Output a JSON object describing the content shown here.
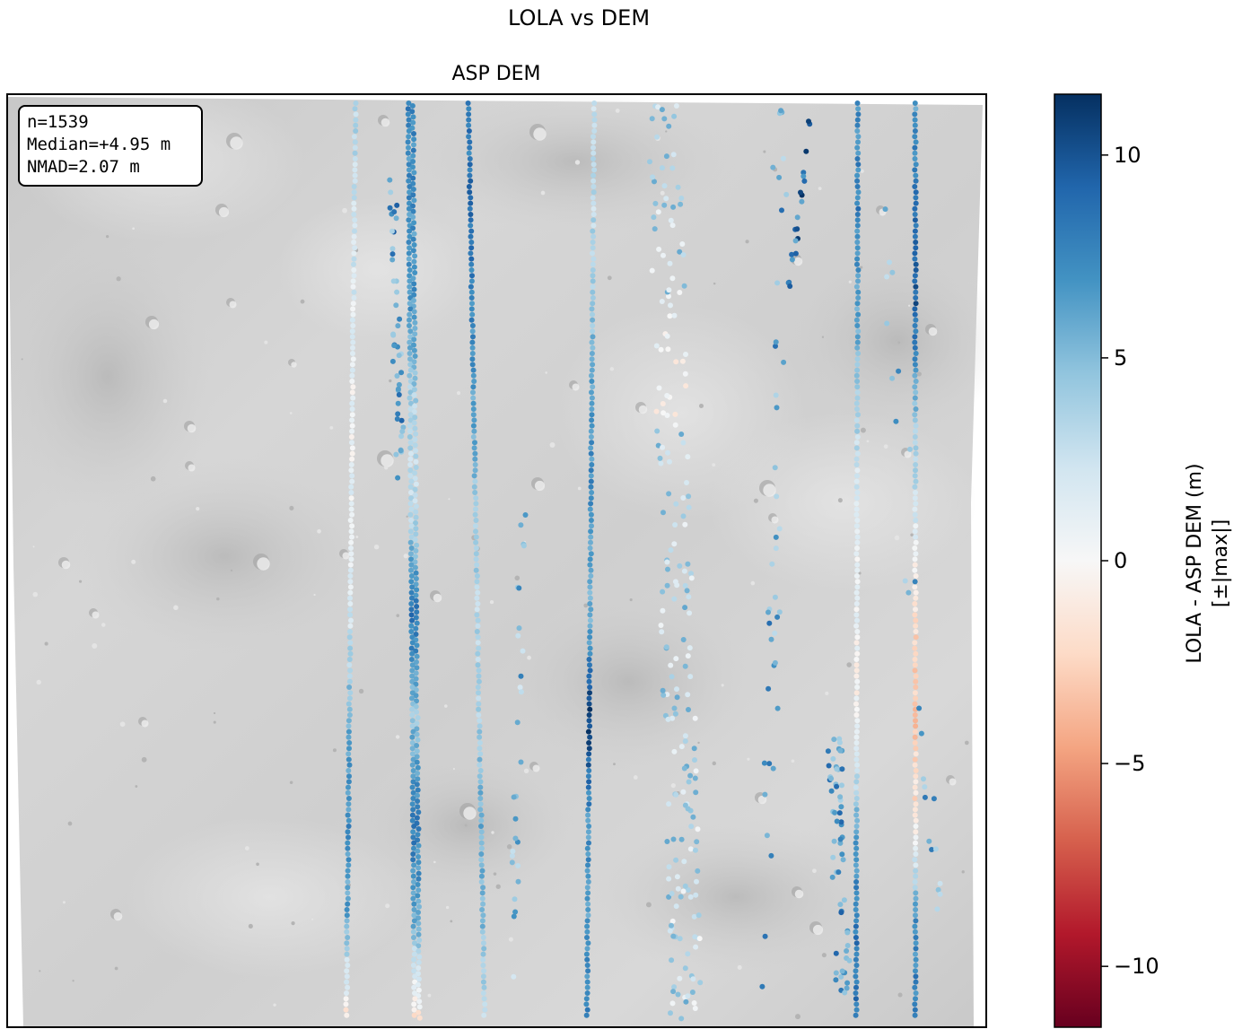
{
  "figure": {
    "suptitle": "LOLA vs DEM"
  },
  "chart_data": {
    "type": "scatter",
    "title": "ASP DEM",
    "background": "grayscale hillshade of lunar terrain with small craters",
    "stats": {
      "lines": [
        "n=1539",
        "Median=+4.95 m",
        "NMAD=2.07 m"
      ]
    },
    "colorbar": {
      "label_line1": "LOLA - ASP DEM (m)",
      "label_line2": "[±|max|]",
      "cmap": "RdBu",
      "range": [
        -11.5,
        11.5
      ],
      "ticks": [
        10,
        5,
        0,
        -5,
        -10
      ],
      "tick_labels": [
        "10",
        "5",
        "0",
        "−5",
        "−10"
      ],
      "colors": {
        "max": "#053061",
        "high": "#2166ac",
        "mid_high": "#4393c3",
        "low_high": "#92c5de",
        "pale_high": "#d1e5f0",
        "zero": "#f7f7f7",
        "pale_low": "#fddbc7",
        "low_low": "#f4a582",
        "mid_low": "#d6604d",
        "low": "#b2182b",
        "min": "#67001f"
      }
    },
    "tracks": [
      {
        "id": "t1",
        "x_start": 396,
        "x_end": 386,
        "values_top_to_bottom": [
          3.5,
          2.5,
          1.5,
          0.5,
          1.0,
          2.0,
          5.5,
          7.0,
          6.0,
          -1.5
        ]
      },
      {
        "id": "t2",
        "x_start": 455,
        "x_end": 462,
        "values_top_to_bottom": [
          7.5,
          7.0,
          6.5,
          3.5,
          3.0,
          8.5,
          4.5,
          8.0,
          6.0,
          -2.0
        ]
      },
      {
        "id": "t3",
        "x_start": 522,
        "x_end": 540,
        "values_top_to_bottom": [
          8.0,
          8.5,
          7.5,
          6.0,
          4.5,
          3.5,
          4.0,
          5.5,
          5.0,
          3.5
        ]
      },
      {
        "id": "t4",
        "x_start": 662,
        "x_end": 654,
        "values_top_to_bottom": [
          2.0,
          3.0,
          4.5,
          6.5,
          7.5,
          5.0,
          11.0,
          7.0,
          6.5,
          7.5
        ]
      },
      {
        "id": "t5",
        "x_start": 956,
        "x_end": 954,
        "values_top_to_bottom": [
          7.0,
          8.0,
          6.0,
          4.0,
          1.0,
          0.5,
          -0.5,
          5.5,
          8.0,
          8.5
        ]
      },
      {
        "id": "t6",
        "x_start": 1020,
        "x_end": 1020,
        "values_top_to_bottom": [
          6.5,
          8.5,
          9.5,
          5.0,
          2.0,
          -2.0,
          -3.0,
          -1.5,
          7.0,
          8.0
        ]
      }
    ]
  }
}
